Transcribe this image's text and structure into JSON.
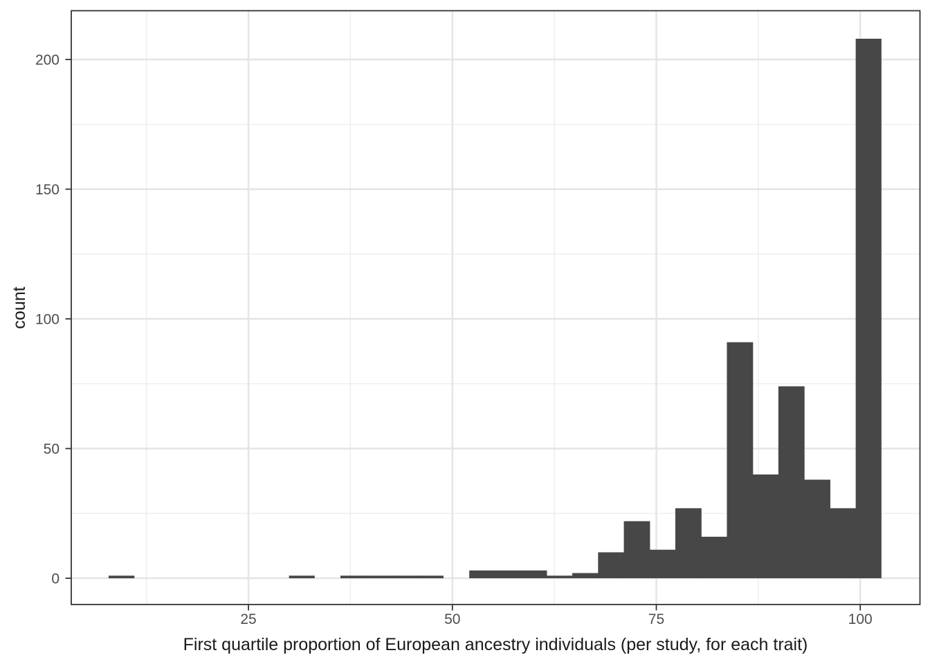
{
  "chart_data": {
    "type": "bar",
    "subtype": "histogram",
    "title": "",
    "xlabel": "First quartile proportion of European ancestry individuals (per study, for each trait)",
    "ylabel": "count",
    "bar_color": "#474747",
    "panel_background": "#ffffff",
    "panel_border_color": "#333333",
    "grid_major_color": "#e4e4e4",
    "grid_minor_color": "#efefef",
    "tick_color": "#333333",
    "tick_label_color": "#4d4d4d",
    "legend": "none",
    "grid": "on",
    "xlim": [
      3.28,
      107.32
    ],
    "ylim": [
      -10.13,
      218.8
    ],
    "x_ticks": [
      25,
      50,
      75,
      100
    ],
    "y_ticks": [
      0,
      50,
      100,
      150,
      200
    ],
    "x_minor_ticks": [
      12.5,
      37.5,
      62.5,
      87.5
    ],
    "y_minor_ticks": [
      25,
      75,
      125,
      175
    ],
    "bin_start": 7.86,
    "bin_width": 3.158,
    "bin_edges": [
      7.86,
      11.02,
      14.18,
      17.33,
      20.49,
      23.65,
      26.81,
      29.97,
      33.12,
      36.28,
      39.44,
      42.6,
      45.76,
      48.91,
      52.07,
      55.23,
      58.39,
      61.54,
      64.7,
      67.86,
      71.02,
      74.18,
      77.33,
      80.49,
      83.65,
      86.81,
      89.96,
      93.12,
      96.28,
      99.44,
      102.6
    ],
    "counts": [
      1,
      0,
      0,
      0,
      0,
      0,
      0,
      1,
      0,
      1,
      1,
      1,
      1,
      0,
      3,
      3,
      3,
      1,
      2,
      10,
      22,
      11,
      27,
      16,
      91,
      40,
      74,
      38,
      27,
      208
    ]
  }
}
